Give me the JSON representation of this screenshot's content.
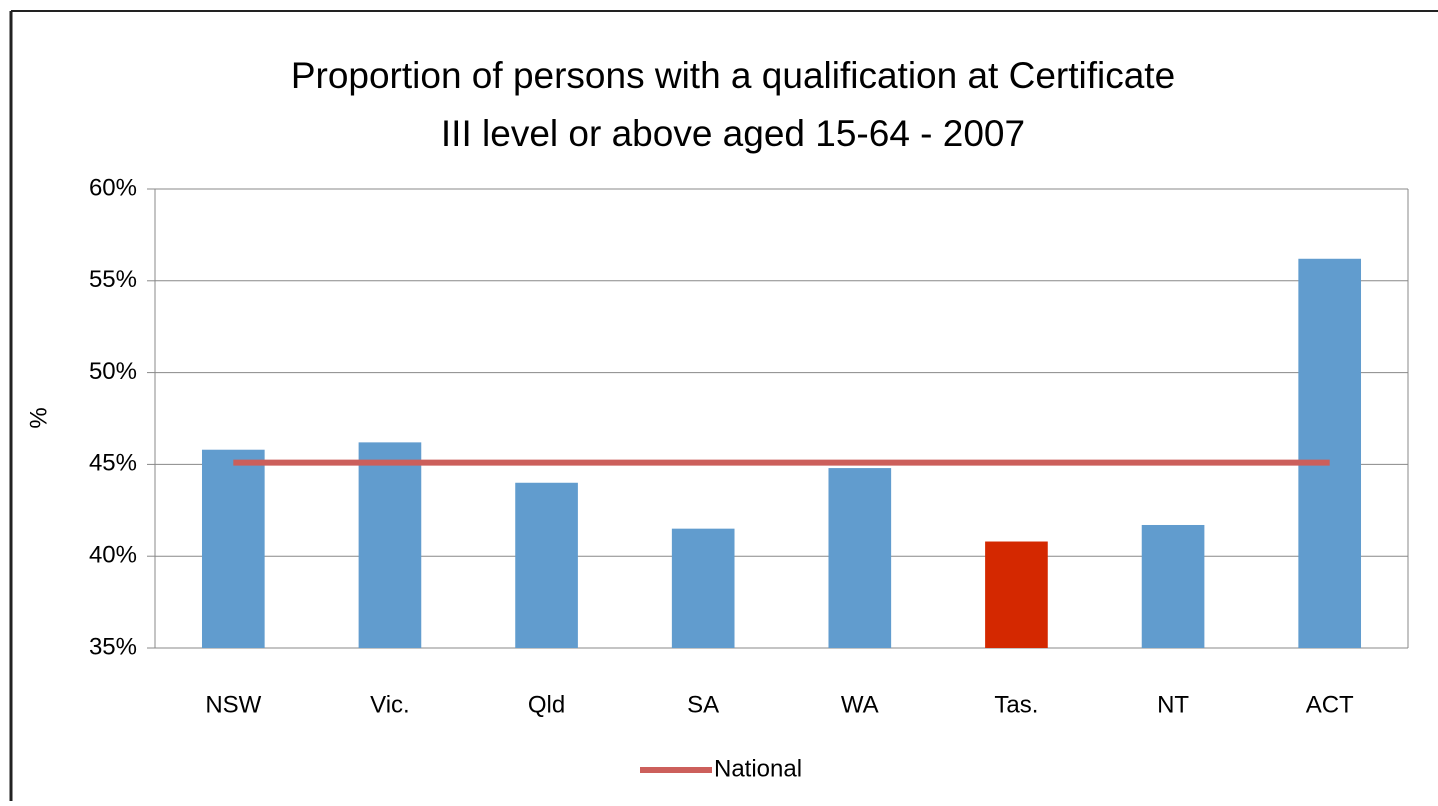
{
  "chart_data": {
    "type": "bar",
    "title": [
      "Proportion of persons with a qualification at Certificate",
      "III level or above aged 15-64  - 2007"
    ],
    "y_label": "%",
    "categories": [
      "NSW",
      "Vic.",
      "Qld",
      "SA",
      "WA",
      "Tas.",
      "NT",
      "ACT"
    ],
    "values": [
      45.8,
      46.2,
      44.0,
      41.5,
      44.8,
      40.8,
      41.7,
      56.2
    ],
    "colors": [
      "#619cce",
      "#619cce",
      "#619cce",
      "#619cce",
      "#619cce",
      "#d42800",
      "#619cce",
      "#619cce"
    ],
    "reference_line": {
      "name": "National",
      "value": 45.1,
      "color": "#cc5f5b"
    },
    "ylim": [
      35,
      60
    ],
    "yticks": [
      {
        "value": 35,
        "label": "35%"
      },
      {
        "value": 40,
        "label": "40%"
      },
      {
        "value": 45,
        "label": "45%"
      },
      {
        "value": 50,
        "label": "50%"
      },
      {
        "value": 55,
        "label": "55%"
      },
      {
        "value": 60,
        "label": "60%"
      }
    ],
    "grid": true,
    "legend": "bottom"
  }
}
